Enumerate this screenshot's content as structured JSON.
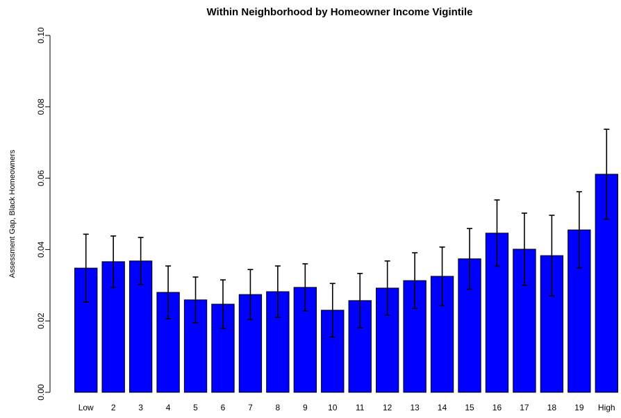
{
  "chart_data": {
    "type": "bar",
    "title": "Within Neighborhood by Homeowner Income Vigintile",
    "y_label": "Assessment Gap, Black Homeowners",
    "categories": [
      "Low",
      "2",
      "3",
      "4",
      "5",
      "6",
      "7",
      "8",
      "9",
      "10",
      "11",
      "12",
      "13",
      "14",
      "15",
      "16",
      "17",
      "18",
      "19",
      "High"
    ],
    "values": [
      0.0348,
      0.0366,
      0.0368,
      0.028,
      0.0259,
      0.0247,
      0.0274,
      0.0282,
      0.0294,
      0.023,
      0.0257,
      0.0292,
      0.0313,
      0.0325,
      0.0374,
      0.0446,
      0.0401,
      0.0383,
      0.0455,
      0.0611
    ],
    "errors": [
      0.0095,
      0.0072,
      0.0066,
      0.0074,
      0.0064,
      0.0068,
      0.007,
      0.0072,
      0.0066,
      0.0075,
      0.0076,
      0.0076,
      0.0078,
      0.0082,
      0.0085,
      0.0093,
      0.0101,
      0.0113,
      0.0107,
      0.0126
    ],
    "color": "#0000ff",
    "ylim": [
      0,
      0.1
    ],
    "yticks": [
      {
        "value": 0,
        "label": "0.00"
      },
      {
        "value": 0.02,
        "label": "0.02"
      },
      {
        "value": 0.04,
        "label": "0.04"
      },
      {
        "value": 0.06,
        "label": "0.06"
      },
      {
        "value": 0.08,
        "label": "0.08"
      },
      {
        "value": 0.1,
        "label": "0.10"
      }
    ],
    "grid": false
  }
}
